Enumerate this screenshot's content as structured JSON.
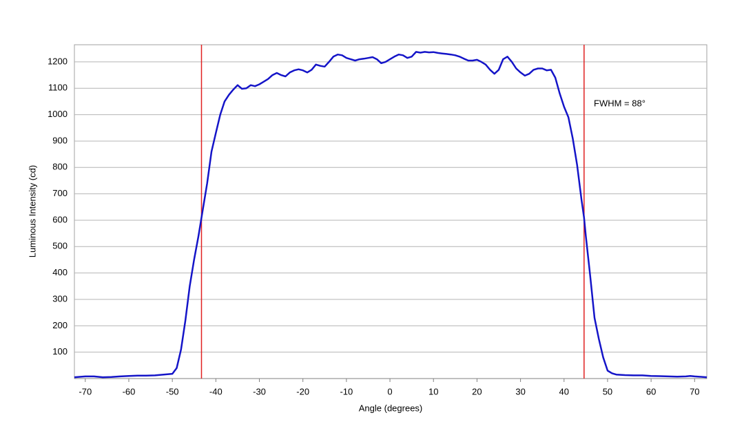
{
  "chart_data": {
    "type": "line",
    "xlabel": "Angle (degrees)",
    "ylabel": "Luminous Intensity (cd)",
    "annotation": "FWHM = 88°",
    "color": "#1414c8",
    "x": [
      -72.5,
      -70,
      -68,
      -66,
      -64,
      -62,
      -60,
      -58,
      -56,
      -54,
      -52,
      -50,
      -49,
      -48,
      -47,
      -46,
      -45,
      -44,
      -43.3,
      -42,
      -41,
      -40,
      -39,
      -38,
      -37,
      -36,
      -35,
      -34,
      -33,
      -32,
      -31,
      -30,
      -29,
      -28,
      -27,
      -26,
      -25,
      -24,
      -23,
      -22,
      -21,
      -20,
      -19,
      -18,
      -17,
      -16,
      -15,
      -14,
      -13,
      -12,
      -11,
      -10,
      -9,
      -8,
      -7,
      -6,
      -5,
      -4,
      -3,
      -2,
      -1,
      0,
      1,
      2,
      3,
      4,
      5,
      6,
      7,
      8,
      9,
      10,
      11,
      12,
      13,
      14,
      15,
      16,
      17,
      18,
      19,
      20,
      21,
      22,
      23,
      24,
      25,
      26,
      27,
      28,
      29,
      30,
      31,
      32,
      33,
      34,
      35,
      36,
      37,
      38,
      39,
      40,
      41,
      42,
      43,
      44,
      44.6,
      45,
      46,
      47,
      48,
      49,
      50,
      51,
      52,
      54,
      56,
      58,
      60,
      62,
      64,
      66,
      68,
      69,
      70,
      72,
      72.8
    ],
    "values": [
      5,
      8,
      8,
      5,
      6,
      8,
      10,
      11,
      11,
      12,
      15,
      18,
      40,
      110,
      220,
      350,
      450,
      540,
      610,
      740,
      860,
      930,
      1000,
      1050,
      1075,
      1095,
      1112,
      1098,
      1100,
      1112,
      1108,
      1115,
      1125,
      1135,
      1150,
      1158,
      1150,
      1145,
      1160,
      1168,
      1172,
      1168,
      1160,
      1170,
      1190,
      1185,
      1182,
      1200,
      1220,
      1228,
      1225,
      1215,
      1210,
      1205,
      1210,
      1212,
      1215,
      1218,
      1210,
      1195,
      1200,
      1210,
      1220,
      1228,
      1225,
      1215,
      1220,
      1238,
      1235,
      1238,
      1236,
      1237,
      1234,
      1232,
      1230,
      1228,
      1225,
      1220,
      1212,
      1205,
      1205,
      1208,
      1200,
      1190,
      1170,
      1155,
      1170,
      1210,
      1220,
      1200,
      1175,
      1160,
      1148,
      1155,
      1170,
      1175,
      1175,
      1168,
      1170,
      1140,
      1080,
      1030,
      990,
      910,
      810,
      680,
      610,
      540,
      390,
      230,
      150,
      80,
      30,
      20,
      15,
      13,
      12,
      12,
      10,
      9,
      8,
      7,
      8,
      10,
      8,
      6,
      5
    ],
    "vlines": [
      -43.3,
      44.6
    ],
    "vline_color": "#e02020",
    "xlim": [
      -72.5,
      72.8
    ],
    "ylim": [
      0,
      1265
    ],
    "xticks": [
      -70,
      -60,
      -50,
      -40,
      -30,
      -20,
      -10,
      0,
      10,
      20,
      30,
      40,
      50,
      60,
      70
    ],
    "yticks": [
      100,
      200,
      300,
      400,
      500,
      600,
      700,
      800,
      900,
      1000,
      1100,
      1200
    ],
    "grid": true
  }
}
